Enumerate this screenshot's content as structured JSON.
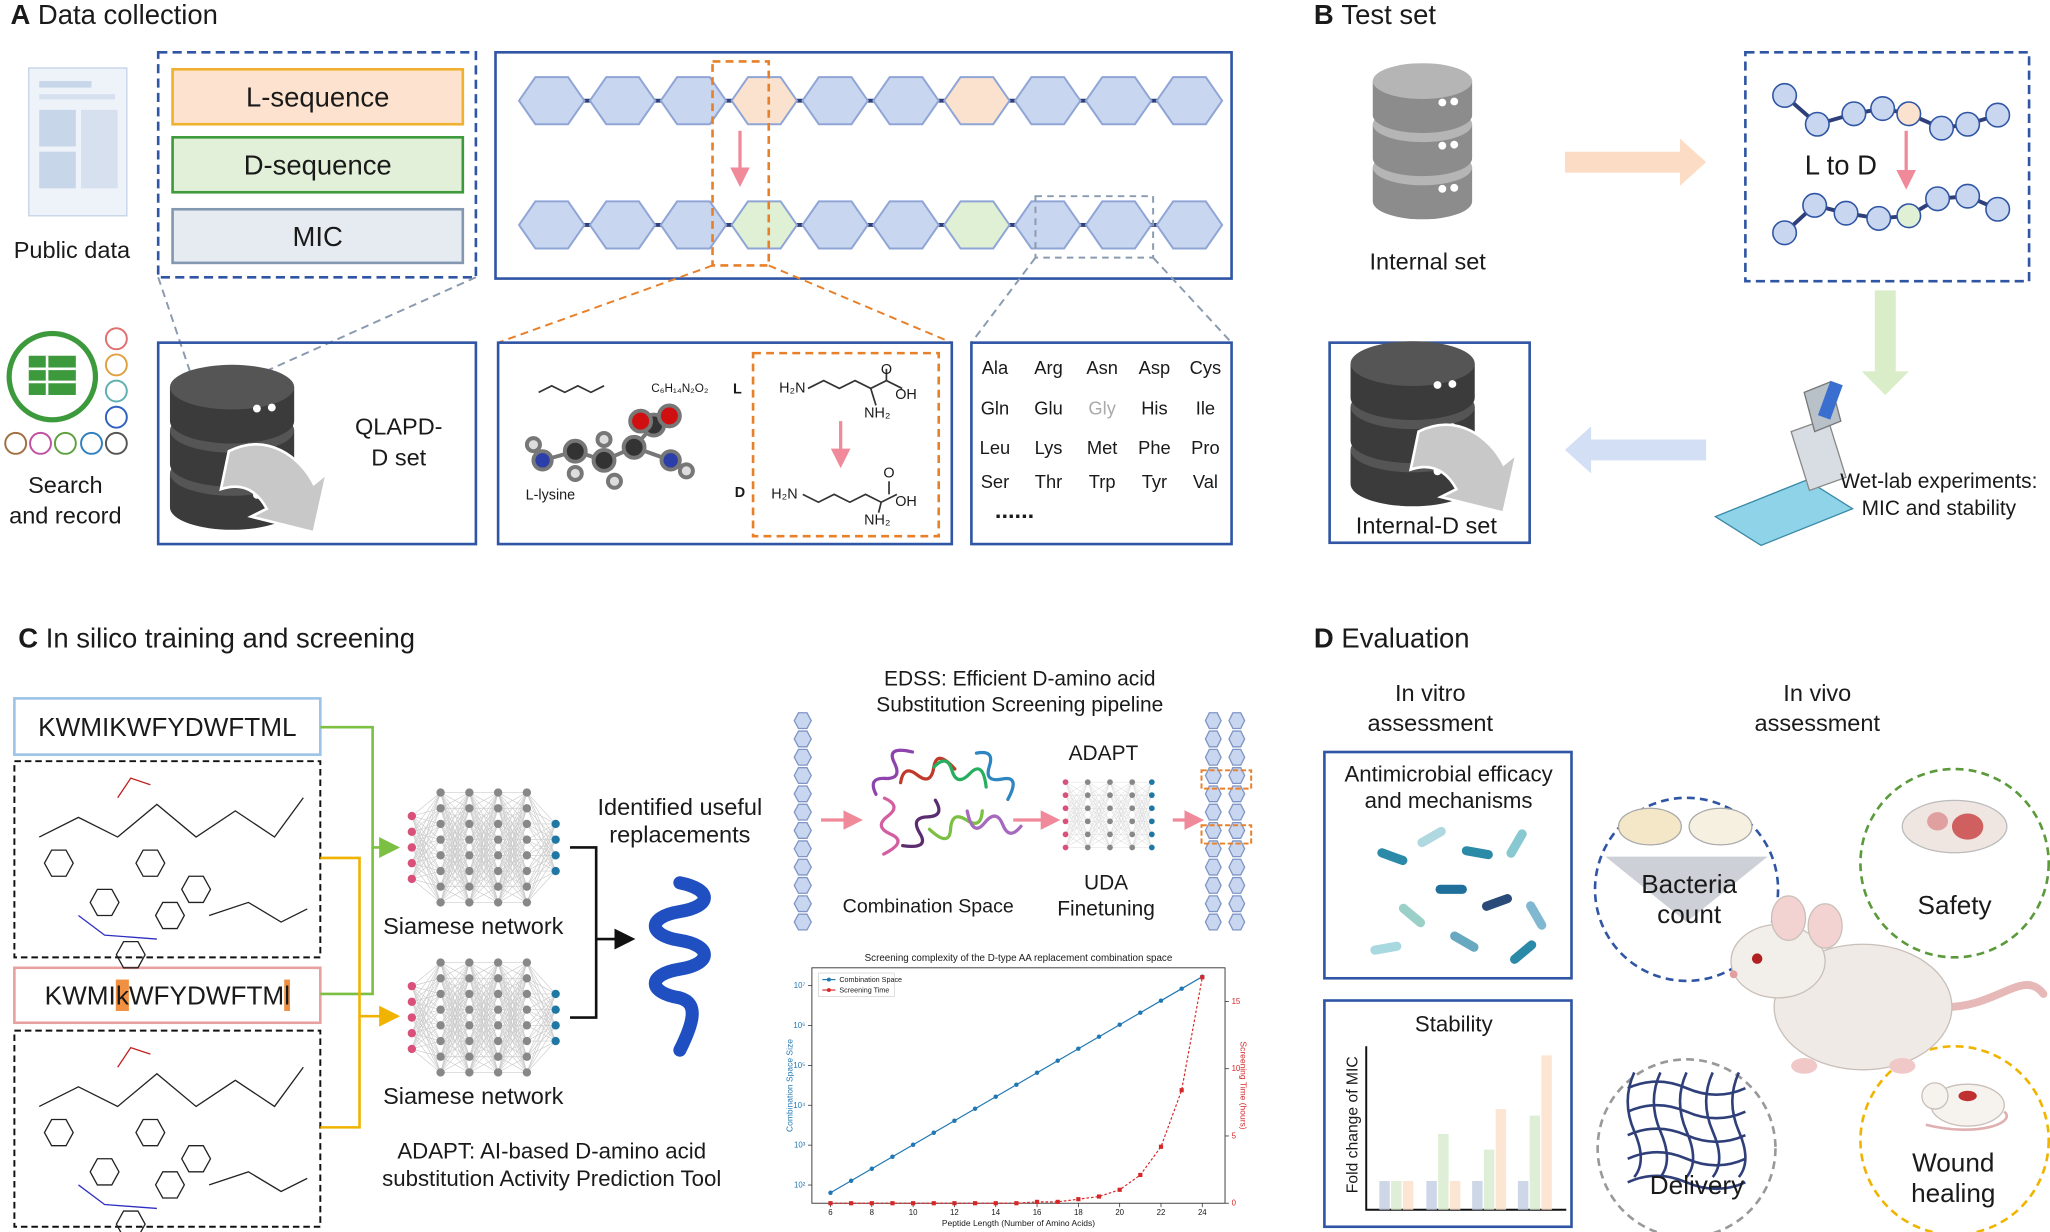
{
  "panel_a": {
    "label": "A",
    "title": "Data collection",
    "public_data": "Public data",
    "fields": [
      "L-sequence",
      "D-sequence",
      "MIC"
    ],
    "search_record": [
      "Search",
      "and record"
    ],
    "qlapd": [
      "QLAPD-",
      "D set"
    ],
    "molecule_name": "L-lysine",
    "formula": "C₆H₁₄N₂O₂",
    "isomers": [
      "L",
      "D"
    ],
    "structure_labels": {
      "amine": "H₂N",
      "side_amine": "NH₂",
      "hydroxyl": "OH",
      "carbonyl": "O"
    },
    "amino_acids": [
      "Ala",
      "Arg",
      "Asn",
      "Asp",
      "Cys",
      "Gln",
      "Glu",
      "Gly",
      "His",
      "Ile",
      "Leu",
      "Lys",
      "Met",
      "Phe",
      "Pro",
      "Ser",
      "Thr",
      "Trp",
      "Tyr",
      "Val"
    ],
    "more": "......"
  },
  "panel_b": {
    "label": "B",
    "title": "Test set",
    "internal_set": "Internal set",
    "l_to_d": "L to D",
    "internal_d_set": "Internal-D set",
    "wet_lab": [
      "Wet-lab experiments:",
      "MIC and stability"
    ]
  },
  "panel_c": {
    "label": "C",
    "title": "In silico training and screening",
    "sequence_l": "KWMIKWFYDWFTML",
    "sequence_d": "KWMIkWFYDWFTMl",
    "siamese": "Siamese network",
    "identified": [
      "Identified useful",
      "replacements"
    ],
    "adapt_caption": [
      "ADAPT: AI-based D-amino acid",
      "substitution Activity Prediction Tool"
    ],
    "edss_caption": [
      "EDSS: Efficient D-amino acid",
      "Substitution Screening pipeline"
    ],
    "adapt": "ADAPT",
    "combination_space": "Combination Space",
    "uda": [
      "UDA",
      "Finetuning"
    ]
  },
  "panel_d": {
    "label": "D",
    "title": "Evaluation",
    "in_vitro": [
      "In vitro",
      "assessment"
    ],
    "in_vivo": [
      "In vivo",
      "assessment"
    ],
    "antimicrobial": [
      "Antimicrobial efficacy",
      "and mechanisms"
    ],
    "stability": "Stability",
    "stability_y_label": "Fold change of MIC",
    "bacteria_count": [
      "Bacteria",
      "count"
    ],
    "safety": "Safety",
    "delivery": "Delivery",
    "wound_healing": [
      "Wound",
      "healing"
    ]
  },
  "chart_data": {
    "type": "line",
    "title": "Screening complexity of the D-type AA replacement combination space",
    "x_label": "Peptide Length (Number of Amino Acids)",
    "y_label": "Combination Space Size",
    "y2_label": "Screening Time (hours)",
    "x": [
      6,
      7,
      8,
      9,
      10,
      11,
      12,
      13,
      14,
      15,
      16,
      17,
      18,
      19,
      20,
      21,
      22,
      23,
      24
    ],
    "series": [
      {
        "name": "Combination Space",
        "color": "#1f77b4",
        "marker": "circle",
        "values": [
          64,
          128,
          256,
          512,
          1024,
          2048,
          4096,
          8192,
          16384,
          32768,
          65536,
          131072,
          262144,
          524288,
          1048576,
          2097152,
          4194304,
          8388608,
          16777216
        ]
      },
      {
        "name": "Screening Time",
        "color": "#d62728",
        "marker": "square",
        "axis": "y2",
        "values": [
          0,
          0,
          0,
          0,
          0,
          0,
          0,
          0,
          0,
          0,
          0.1,
          0.1,
          0.3,
          0.5,
          1.0,
          2.1,
          4.2,
          8.4,
          16.8
        ]
      }
    ],
    "xlim": [
      5.1,
      25.1
    ],
    "xticks": [
      6,
      8,
      10,
      12,
      14,
      16,
      18,
      20,
      22,
      24
    ],
    "ylim": [
      35,
      28000000
    ],
    "yscale": "log",
    "yticks": [
      {
        "value": 100,
        "label": "10²"
      },
      {
        "value": 1000,
        "label": "10³"
      },
      {
        "value": 10000,
        "label": "10⁴"
      },
      {
        "value": 100000,
        "label": "10⁵"
      },
      {
        "value": 1000000,
        "label": "10⁶"
      },
      {
        "value": 10000000,
        "label": "10⁷"
      }
    ],
    "y2lim": [
      0,
      17.5
    ],
    "y2ticks": [
      0,
      5,
      10,
      15
    ],
    "legend": "upper left"
  }
}
